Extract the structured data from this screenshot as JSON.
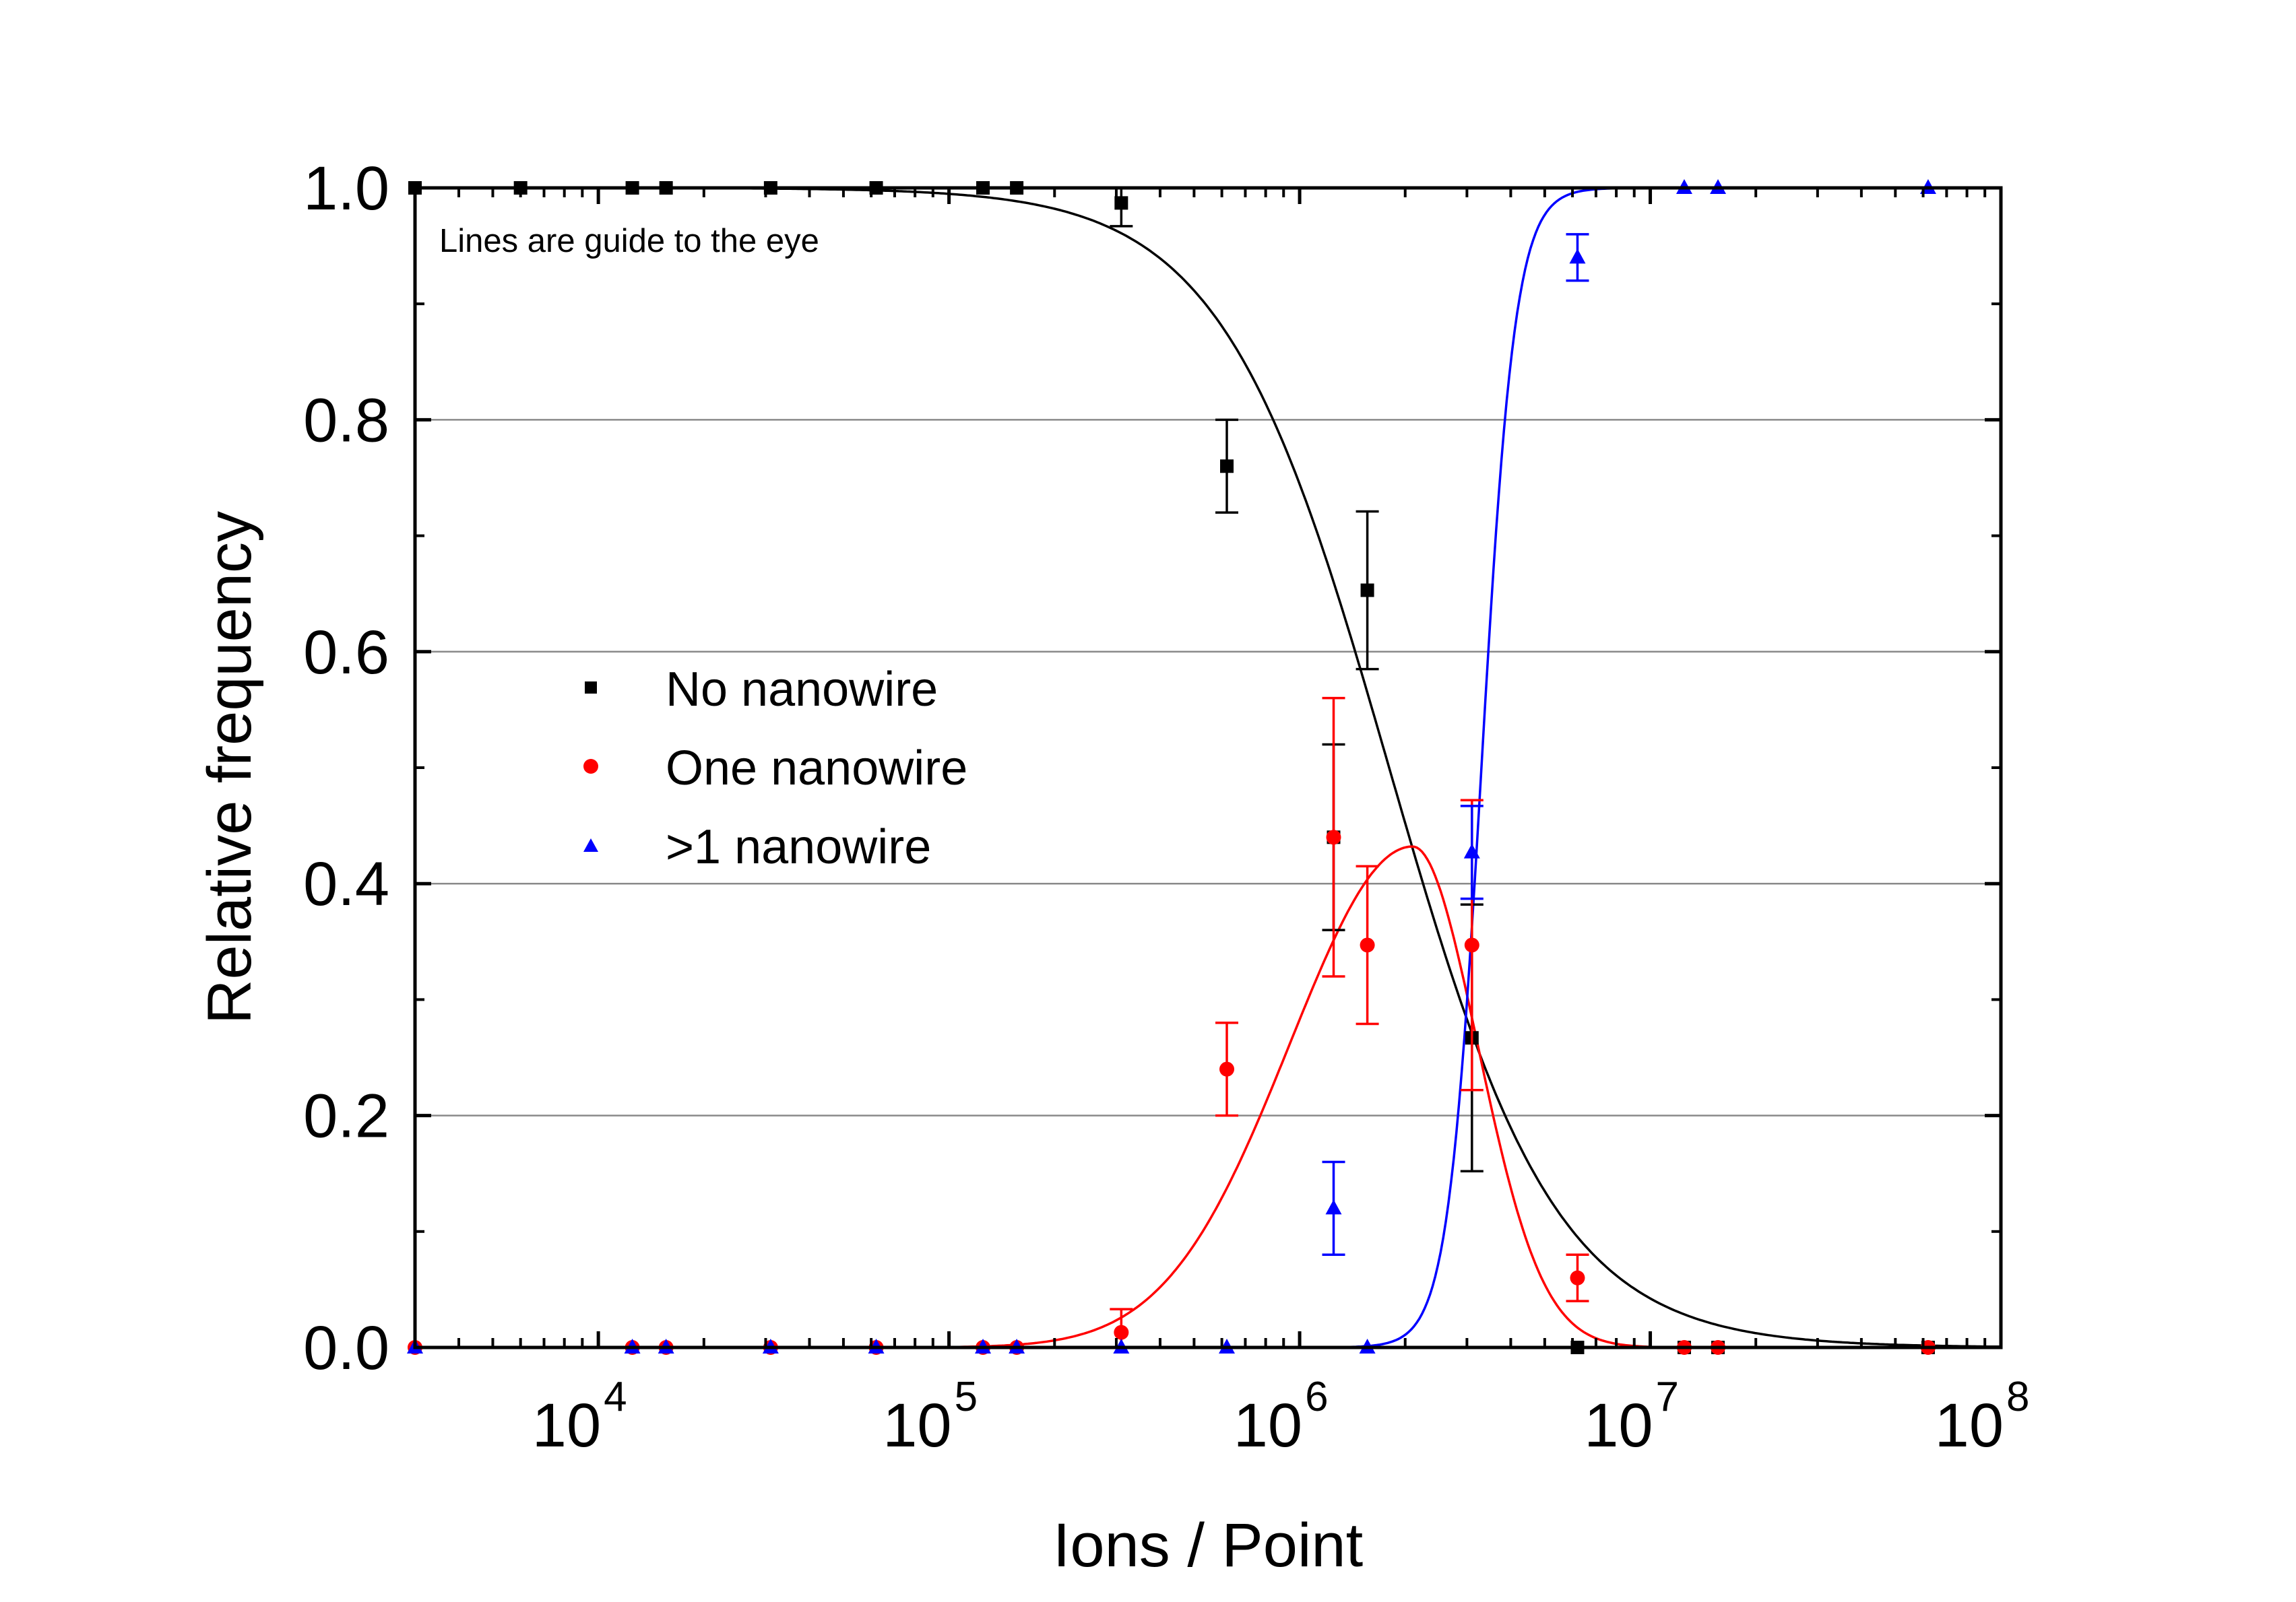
{
  "chart_data": {
    "type": "scatter",
    "xscale": "log",
    "xlim": [
      3000,
      100000000
    ],
    "ylim": [
      0.0,
      1.0
    ],
    "xlabel": "Ions / Point",
    "ylabel": "Relative frequency",
    "annotation": "Lines are guide to the eye",
    "x_ticks": [
      {
        "value": 10000,
        "base": "10",
        "exp": "4"
      },
      {
        "value": 100000,
        "base": "10",
        "exp": "5"
      },
      {
        "value": 1000000,
        "base": "10",
        "exp": "6"
      },
      {
        "value": 10000000,
        "base": "10",
        "exp": "7"
      },
      {
        "value": 100000000,
        "base": "10",
        "exp": "8"
      }
    ],
    "y_ticks": [
      {
        "value": 0.0,
        "label": "0.0"
      },
      {
        "value": 0.2,
        "label": "0.2"
      },
      {
        "value": 0.4,
        "label": "0.4"
      },
      {
        "value": 0.6,
        "label": "0.6"
      },
      {
        "value": 0.8,
        "label": "0.8"
      },
      {
        "value": 1.0,
        "label": "1.0"
      }
    ],
    "gridlines_y": [
      0.2,
      0.4,
      0.6,
      0.8
    ],
    "legend_position": "center-left",
    "series": [
      {
        "name": "No nanowire",
        "color": "#000000",
        "marker": "square",
        "points": [
          {
            "x": 3000,
            "y": 1.0
          },
          {
            "x": 6000,
            "y": 1.0
          },
          {
            "x": 12500,
            "y": 1.0
          },
          {
            "x": 15600,
            "y": 1.0
          },
          {
            "x": 31000,
            "y": 1.0
          },
          {
            "x": 62000,
            "y": 1.0
          },
          {
            "x": 125000,
            "y": 1.0
          },
          {
            "x": 156000,
            "y": 1.0
          },
          {
            "x": 310000,
            "y": 0.987,
            "err": 0.02
          },
          {
            "x": 620000,
            "y": 0.76,
            "err": 0.04
          },
          {
            "x": 1250000,
            "y": 0.44,
            "err": 0.08
          },
          {
            "x": 1560000,
            "y": 0.653,
            "err": 0.068
          },
          {
            "x": 3100000,
            "y": 0.267,
            "err": 0.115
          },
          {
            "x": 6200000,
            "y": 0.0
          },
          {
            "x": 12500000,
            "y": 0.0
          },
          {
            "x": 15600000,
            "y": 0.0
          },
          {
            "x": 62000000,
            "y": 0.0
          }
        ],
        "guide_line": {
          "model": "logistic",
          "x0": 1800000,
          "p": 1.82,
          "ymax": 1.0
        }
      },
      {
        "name": "One nanowire",
        "color": "#ff0000",
        "marker": "circle",
        "points": [
          {
            "x": 3000,
            "y": 0.0
          },
          {
            "x": 12500,
            "y": 0.0
          },
          {
            "x": 15600,
            "y": 0.0
          },
          {
            "x": 31000,
            "y": 0.0
          },
          {
            "x": 62000,
            "y": 0.0
          },
          {
            "x": 125000,
            "y": 0.0
          },
          {
            "x": 156000,
            "y": 0.0
          },
          {
            "x": 310000,
            "y": 0.013,
            "err": 0.02
          },
          {
            "x": 620000,
            "y": 0.24,
            "err": 0.04
          },
          {
            "x": 1250000,
            "y": 0.44,
            "err": 0.12
          },
          {
            "x": 1560000,
            "y": 0.347,
            "err": 0.068
          },
          {
            "x": 3100000,
            "y": 0.347,
            "err": 0.125
          },
          {
            "x": 6200000,
            "y": 0.06,
            "err": 0.02
          },
          {
            "x": 12500000,
            "y": 0.0
          },
          {
            "x": 15600000,
            "y": 0.0
          },
          {
            "x": 62000000,
            "y": 0.0
          }
        ],
        "guide_line": {
          "model": "asymmetric-peak",
          "peak_x": 2100000,
          "peak_y": 0.432,
          "sigma_left_decades": 0.35,
          "sigma_right_decades": 0.185
        }
      },
      {
        "name": ">1 nanowire",
        "color": "#0000ff",
        "marker": "triangle",
        "points": [
          {
            "x": 3000,
            "y": 0.0
          },
          {
            "x": 12500,
            "y": 0.0
          },
          {
            "x": 15600,
            "y": 0.0
          },
          {
            "x": 31000,
            "y": 0.0
          },
          {
            "x": 62000,
            "y": 0.0
          },
          {
            "x": 125000,
            "y": 0.0
          },
          {
            "x": 156000,
            "y": 0.0
          },
          {
            "x": 310000,
            "y": 0.0
          },
          {
            "x": 620000,
            "y": 0.0
          },
          {
            "x": 1250000,
            "y": 0.12,
            "err": 0.04
          },
          {
            "x": 1560000,
            "y": 0.0
          },
          {
            "x": 3100000,
            "y": 0.427,
            "err": 0.04
          },
          {
            "x": 6200000,
            "y": 0.94,
            "err": 0.02
          },
          {
            "x": 12500000,
            "y": 1.0
          },
          {
            "x": 15600000,
            "y": 1.0
          },
          {
            "x": 62000000,
            "y": 1.0
          }
        ],
        "guide_line": {
          "model": "logistic-rise",
          "x0": 3300000,
          "p": 9.0,
          "ymax": 1.0
        }
      }
    ]
  }
}
